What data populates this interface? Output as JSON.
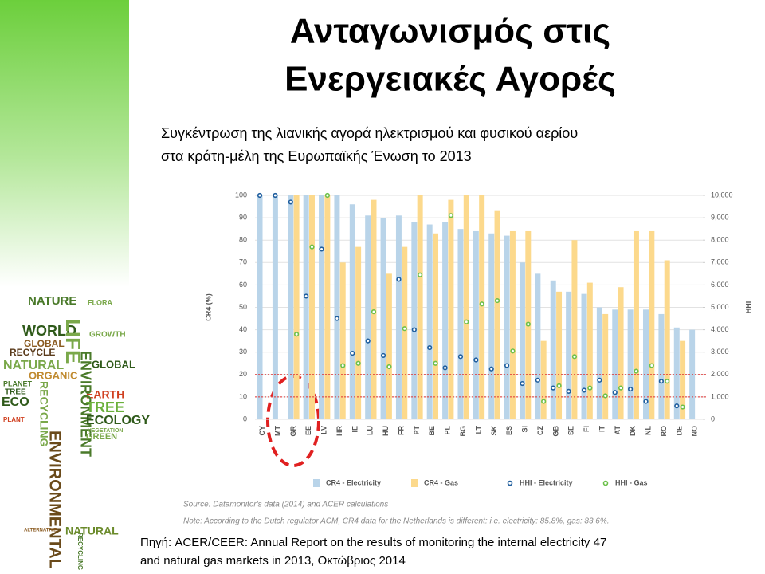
{
  "title": {
    "line1": "Ανταγωνισμός στις",
    "line2": "Ενεργειακές Αγορές"
  },
  "subtitle": {
    "line1": "Συγκέντρωση της λιανικής αγορά ηλεκτρισμού και φυσικού αερίου",
    "line2": "στα κράτη-μέλη της Ευρωπαϊκής Ένωση το 2013"
  },
  "chart_data": {
    "type": "combo",
    "categories": [
      "CY",
      "MT",
      "GR",
      "EE",
      "LV",
      "HR",
      "IE",
      "LU",
      "HU",
      "FR",
      "PT",
      "BE",
      "PL",
      "BG",
      "LT",
      "SK",
      "ES",
      "SI",
      "CZ",
      "GB",
      "SE",
      "FI",
      "IT",
      "AT",
      "DK",
      "NL",
      "RO",
      "DE",
      "NO"
    ],
    "y_label": "CR4 (%)",
    "y2_label": "HHI",
    "ylim": [
      0,
      100
    ],
    "yticks": [
      0,
      10,
      20,
      30,
      40,
      50,
      60,
      70,
      80,
      90,
      100
    ],
    "y2lim": [
      0,
      10000
    ],
    "y2ticks": [
      {
        "value": 0,
        "label": "0"
      },
      {
        "value": 1000,
        "label": "1,000"
      },
      {
        "value": 2000,
        "label": "2,000"
      },
      {
        "value": 3000,
        "label": "3,000"
      },
      {
        "value": 4000,
        "label": "4,000"
      },
      {
        "value": 5000,
        "label": "5,000"
      },
      {
        "value": 6000,
        "label": "6,000"
      },
      {
        "value": 7000,
        "label": "7,000"
      },
      {
        "value": 8000,
        "label": "8,000"
      },
      {
        "value": 9000,
        "label": "9,000"
      },
      {
        "value": 10000,
        "label": "10,000"
      }
    ],
    "grid": true,
    "reference_lines_y2": [
      2000,
      1000
    ],
    "reference_color": "#e03030",
    "series": [
      {
        "name": "CR4 - Electricity",
        "mark": "bar",
        "color": "#b9d4e9",
        "values": [
          100,
          100,
          100,
          100,
          100,
          100,
          96,
          91,
          90,
          91,
          88,
          87,
          88,
          85,
          84,
          83,
          82,
          70,
          65,
          62,
          57,
          56,
          50,
          49,
          49,
          49,
          47,
          41,
          40
        ]
      },
      {
        "name": "CR4 - Gas",
        "mark": "bar",
        "color": "#fcd98c",
        "values": [
          null,
          null,
          100,
          100,
          100,
          70,
          77,
          98,
          65,
          77,
          100,
          83,
          98,
          100,
          100,
          93,
          84,
          84,
          35,
          57,
          80,
          61,
          47,
          59,
          84,
          84,
          71,
          35,
          null
        ]
      },
      {
        "name": "HHI - Electricity",
        "mark": "dot",
        "axis": "y2",
        "color": "#1f5e9e",
        "values": [
          10000,
          10000,
          9700,
          5500,
          7600,
          4500,
          2950,
          3500,
          2850,
          6250,
          4000,
          3200,
          2300,
          2800,
          2650,
          2250,
          2400,
          1600,
          1750,
          1400,
          1250,
          1300,
          1750,
          1200,
          1350,
          800,
          1700,
          600,
          null
        ]
      },
      {
        "name": "HHI - Gas",
        "mark": "dot",
        "axis": "y2",
        "color": "#6cc04a",
        "values": [
          null,
          null,
          3800,
          7700,
          10000,
          2400,
          2500,
          4800,
          2350,
          4050,
          6450,
          2500,
          9100,
          4350,
          5150,
          5300,
          3050,
          4250,
          800,
          1500,
          2800,
          1400,
          1050,
          1400,
          2150,
          2400,
          1700,
          550,
          null
        ]
      }
    ]
  },
  "notes": {
    "source": "Source: Datamonitor's data (2014) and ACER calculations",
    "note": "Note: According to the Dutch regulator ACM, CR4 data for the Netherlands is different: i.e. electricity: 85.8%, gas: 83.6%."
  },
  "footer": {
    "line1": "Πηγή: ACER/CEER: Annual Report on the results of monitoring the internal electricity 47",
    "line2": "and natural gas markets in 2013,  Οκτώβριος 2014"
  },
  "word_cloud": [
    "NATURE",
    "WORLD",
    "GLOBAL",
    "RECYCLE",
    "NATURAL",
    "ORGANIC",
    "PLANET",
    "ECO",
    "TREE",
    "EARTH",
    "PLANT",
    "LIFE",
    "ENVIRONMENT",
    "RECYCLING",
    "ENVIRONMENTAL",
    "ECOLOGY",
    "GREEN",
    "FLORA",
    "GROWTH",
    "VEGETATION",
    "NATURAL",
    "ALTERNATIVE",
    "GLOBAL",
    "TREE",
    "RECYCLING"
  ]
}
